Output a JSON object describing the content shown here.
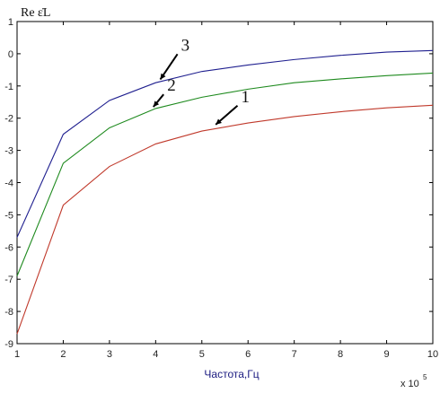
{
  "chart_data": {
    "type": "line",
    "title": "",
    "ylabel": "Re ε̇L",
    "xlabel": "Частота,Гц",
    "x_multiplier": "x 10",
    "x_multiplier_exp": "5",
    "xlim": [
      1,
      10
    ],
    "ylim": [
      -9,
      1
    ],
    "grid": false,
    "x": [
      1,
      2,
      3,
      4,
      5,
      6,
      7,
      8,
      9,
      10
    ],
    "x_ticks": [
      "1",
      "2",
      "3",
      "4",
      "5",
      "6",
      "7",
      "8",
      "9",
      "10"
    ],
    "y_ticks": [
      "-9",
      "-8",
      "-7",
      "-6",
      "-5",
      "-4",
      "-3",
      "-2",
      "-1",
      "0",
      "1"
    ],
    "series": [
      {
        "label": "1",
        "color": "#c0392b",
        "values": [
          -8.7,
          -4.7,
          -3.5,
          -2.8,
          -2.4,
          -2.15,
          -1.95,
          -1.8,
          -1.68,
          -1.6
        ]
      },
      {
        "label": "2",
        "color": "#1e8a1e",
        "values": [
          -6.9,
          -3.4,
          -2.3,
          -1.7,
          -1.35,
          -1.1,
          -0.9,
          -0.78,
          -0.68,
          -0.6
        ]
      },
      {
        "label": "3",
        "color": "#1f1f8f",
        "values": [
          -5.7,
          -2.5,
          -1.45,
          -0.9,
          -0.55,
          -0.35,
          -0.18,
          -0.05,
          0.05,
          0.1
        ]
      }
    ],
    "annotations": [
      {
        "text": "1",
        "x": 5.85,
        "y": -1.5,
        "arrow_to": [
          5.3,
          -2.2
        ]
      },
      {
        "text": "2",
        "x": 4.25,
        "y": -1.15,
        "arrow_to": [
          3.95,
          -1.65
        ]
      },
      {
        "text": "3",
        "x": 4.55,
        "y": 0.1,
        "arrow_to": [
          4.1,
          -0.8
        ]
      }
    ]
  }
}
